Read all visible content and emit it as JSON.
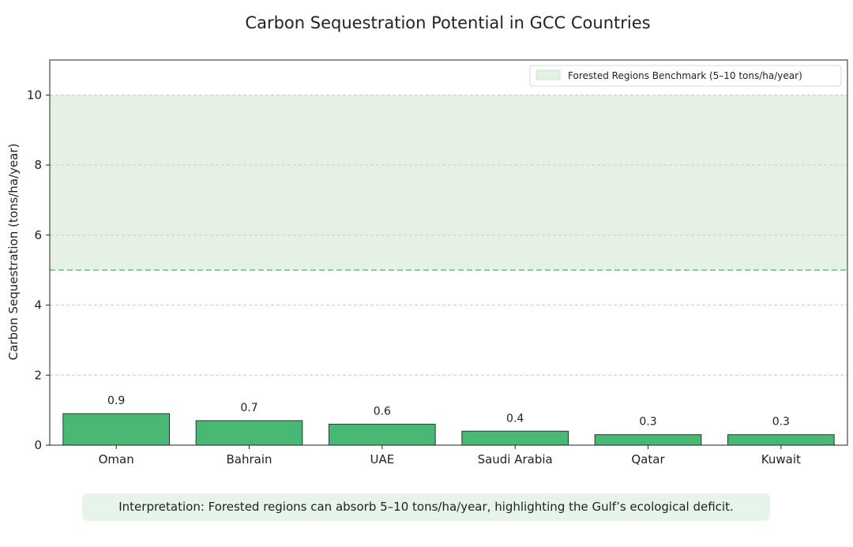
{
  "chart_data": {
    "type": "bar",
    "title": "Carbon Sequestration Potential in GCC Countries",
    "xlabel": "",
    "ylabel": "Carbon Sequestration (tons/ha/year)",
    "categories": [
      "Oman",
      "Bahrain",
      "UAE",
      "Saudi Arabia",
      "Qatar",
      "Kuwait"
    ],
    "values": [
      0.9,
      0.7,
      0.6,
      0.4,
      0.3,
      0.3
    ],
    "value_labels": [
      "0.9",
      "0.7",
      "0.6",
      "0.4",
      "0.3",
      "0.3"
    ],
    "ylim": [
      0,
      11
    ],
    "yticks": [
      0,
      2,
      4,
      6,
      8,
      10
    ],
    "grid": "y, dashed",
    "benchmark_band": {
      "label": "Forested Regions Benchmark (5–10 tons/ha/year)",
      "min": 5,
      "max": 10
    },
    "legend_position": "top-right",
    "colors": {
      "bar": "#48b874",
      "bar_edge": "#1f3d2a",
      "band": "#e4f1e4",
      "band_line": "#7cc47c",
      "grid": "#cccccc"
    }
  },
  "annotation": {
    "text": "Interpretation: Forested regions can absorb 5–10 tons/ha/year, highlighting the Gulf’s ecological deficit."
  }
}
